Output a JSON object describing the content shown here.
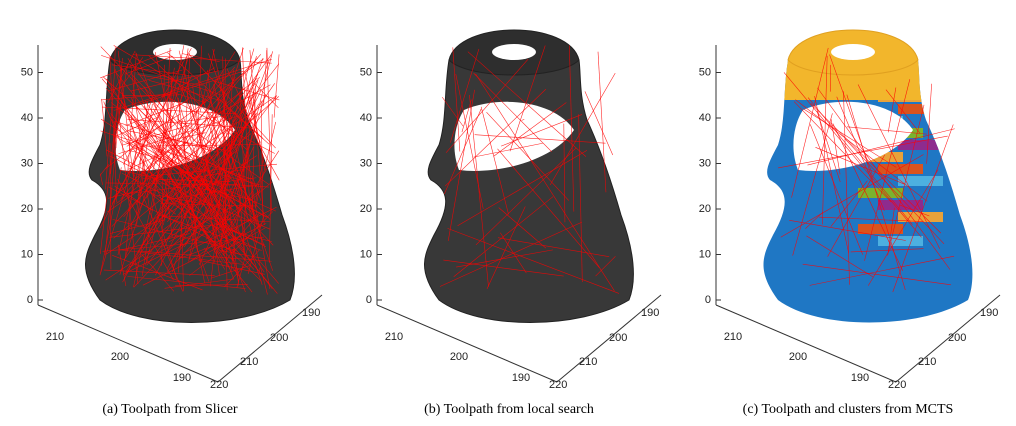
{
  "panels": [
    {
      "caption": "(a) Toolpath from Slicer",
      "z_ticks": [
        "0",
        "10",
        "20",
        "30",
        "40",
        "50"
      ],
      "x_ticks": [
        "210",
        "200",
        "190"
      ],
      "y_ticks": [
        "190",
        "200",
        "210",
        "220"
      ]
    },
    {
      "caption": "(b) Toolpath from local search",
      "z_ticks": [
        "0",
        "10",
        "20",
        "30",
        "40",
        "50"
      ],
      "x_ticks": [
        "210",
        "200",
        "190"
      ],
      "y_ticks": [
        "190",
        "200",
        "210",
        "220"
      ]
    },
    {
      "caption": "(c) Toolpath and clusters from MCTS",
      "z_ticks": [
        "0",
        "10",
        "20",
        "30",
        "40",
        "50"
      ],
      "x_ticks": [
        "210",
        "200",
        "190"
      ],
      "y_ticks": [
        "190",
        "200",
        "210",
        "220"
      ]
    }
  ]
}
